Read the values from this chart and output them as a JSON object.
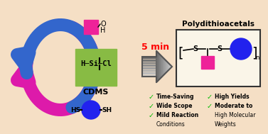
{
  "background_color": "#f5dfc5",
  "title": "Polydithioacetals",
  "arrow_color_pink": "#dd1aaa",
  "arrow_color_blue": "#3366cc",
  "cdms_box_color": "#88bb44",
  "cdms_label": "CDMS",
  "aldehyde_color": "#ee2299",
  "dithiol_color": "#2222ee",
  "time_label": "5 min",
  "time_color": "#ff0000",
  "bullet_color": "#00bb00",
  "bullets_left": [
    "Time-Saving",
    "Wide Scope",
    "Mild Reaction",
    "Conditions"
  ],
  "bullets_right": [
    "High Yields",
    "Moderate to",
    "High Molecular",
    "Weights"
  ],
  "product_pink_color": "#ee2299",
  "product_blue_color": "#2222ee",
  "box_edge_color": "#333333"
}
